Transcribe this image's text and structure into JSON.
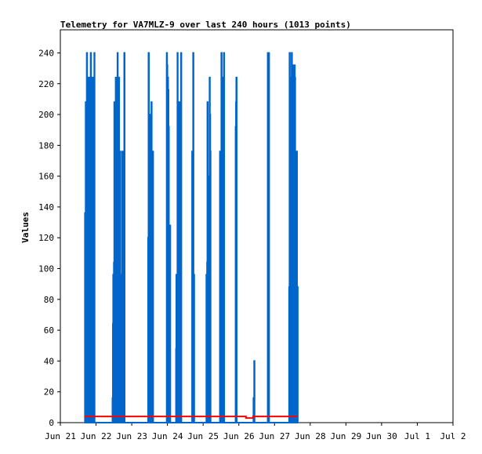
{
  "chart_data": {
    "type": "line",
    "title": "Telemetry for VA7MLZ-9 over last 240 hours (1013 points)",
    "xlabel": "",
    "ylabel": "Values",
    "ylim": [
      0,
      255
    ],
    "yticks": [
      0,
      20,
      40,
      60,
      80,
      100,
      120,
      140,
      160,
      180,
      200,
      220,
      240
    ],
    "xlim": [
      0,
      11
    ],
    "xticks": [
      {
        "v": 0,
        "label": "Jun 21"
      },
      {
        "v": 1,
        "label": "Jun 22"
      },
      {
        "v": 2,
        "label": "Jun 23"
      },
      {
        "v": 3,
        "label": "Jun 24"
      },
      {
        "v": 4,
        "label": "Jun 25"
      },
      {
        "v": 5,
        "label": "Jun 26"
      },
      {
        "v": 6,
        "label": "Jun 27"
      },
      {
        "v": 7,
        "label": "Jun 28"
      },
      {
        "v": 8,
        "label": "Jun 29"
      },
      {
        "v": 9,
        "label": "Jun 30"
      },
      {
        "v": 10,
        "label": "Jul 1"
      },
      {
        "v": 11,
        "label": "Jul 2"
      }
    ],
    "grid": false,
    "series": [
      {
        "color": "#0066cc",
        "points": [
          [
            0.68,
            0
          ],
          [
            0.69,
            136
          ],
          [
            0.7,
            32
          ],
          [
            0.71,
            208
          ],
          [
            0.72,
            0
          ],
          [
            0.73,
            192
          ],
          [
            0.74,
            240
          ],
          [
            0.75,
            0
          ],
          [
            0.76,
            88
          ],
          [
            0.77,
            176
          ],
          [
            0.78,
            224
          ],
          [
            0.79,
            0
          ],
          [
            0.8,
            208
          ],
          [
            0.81,
            224
          ],
          [
            0.82,
            0
          ],
          [
            0.83,
            136
          ],
          [
            0.84,
            0
          ],
          [
            0.85,
            240
          ],
          [
            0.86,
            0
          ],
          [
            0.87,
            176
          ],
          [
            0.88,
            224
          ],
          [
            0.89,
            0
          ],
          [
            0.9,
            176
          ],
          [
            0.91,
            224
          ],
          [
            0.92,
            0
          ],
          [
            0.93,
            112
          ],
          [
            0.94,
            0
          ],
          [
            0.95,
            240
          ],
          [
            0.96,
            0
          ],
          [
            1.45,
            0
          ],
          [
            1.46,
            16
          ],
          [
            1.47,
            64
          ],
          [
            1.48,
            96
          ],
          [
            1.49,
            0
          ],
          [
            1.5,
            104
          ],
          [
            1.51,
            208
          ],
          [
            1.52,
            0
          ],
          [
            1.53,
            104
          ],
          [
            1.54,
            176
          ],
          [
            1.55,
            224
          ],
          [
            1.56,
            0
          ],
          [
            1.57,
            192
          ],
          [
            1.58,
            224
          ],
          [
            1.59,
            0
          ],
          [
            1.6,
            240
          ],
          [
            1.61,
            0
          ],
          [
            1.62,
            64
          ],
          [
            1.63,
            112
          ],
          [
            1.64,
            224
          ],
          [
            1.65,
            0
          ],
          [
            1.66,
            80
          ],
          [
            1.67,
            176
          ],
          [
            1.68,
            0
          ],
          [
            1.69,
            96
          ],
          [
            1.7,
            48
          ],
          [
            1.71,
            0
          ],
          [
            1.72,
            88
          ],
          [
            1.73,
            176
          ],
          [
            1.74,
            0
          ],
          [
            1.75,
            176
          ],
          [
            1.76,
            0
          ],
          [
            1.77,
            96
          ],
          [
            1.78,
            0
          ],
          [
            1.79,
            240
          ],
          [
            1.8,
            0
          ],
          [
            2.45,
            0
          ],
          [
            2.46,
            120
          ],
          [
            2.47,
            240
          ],
          [
            2.48,
            0
          ],
          [
            2.49,
            104
          ],
          [
            2.5,
            200
          ],
          [
            2.51,
            192
          ],
          [
            2.52,
            0
          ],
          [
            2.53,
            80
          ],
          [
            2.54,
            0
          ],
          [
            2.55,
            208
          ],
          [
            2.56,
            0
          ],
          [
            2.57,
            96
          ],
          [
            2.58,
            0
          ],
          [
            2.59,
            176
          ],
          [
            2.6,
            0
          ],
          [
            2.97,
            0
          ],
          [
            2.98,
            240
          ],
          [
            2.99,
            232
          ],
          [
            3.0,
            0
          ],
          [
            3.01,
            224
          ],
          [
            3.02,
            216
          ],
          [
            3.03,
            192
          ],
          [
            3.04,
            0
          ],
          [
            3.05,
            96
          ],
          [
            3.06,
            0
          ],
          [
            3.07,
            128
          ],
          [
            3.08,
            0
          ],
          [
            3.23,
            0
          ],
          [
            3.24,
            48
          ],
          [
            3.25,
            96
          ],
          [
            3.26,
            64
          ],
          [
            3.27,
            0
          ],
          [
            3.28,
            240
          ],
          [
            3.29,
            40
          ],
          [
            3.3,
            0
          ],
          [
            3.31,
            80
          ],
          [
            3.32,
            208
          ],
          [
            3.33,
            0
          ],
          [
            3.34,
            208
          ],
          [
            3.35,
            104
          ],
          [
            3.36,
            208
          ],
          [
            3.37,
            0
          ],
          [
            3.38,
            240
          ],
          [
            3.39,
            0
          ],
          [
            3.68,
            0
          ],
          [
            3.69,
            176
          ],
          [
            3.7,
            160
          ],
          [
            3.71,
            0
          ],
          [
            3.72,
            240
          ],
          [
            3.73,
            0
          ],
          [
            3.74,
            96
          ],
          [
            3.75,
            0
          ],
          [
            4.08,
            0
          ],
          [
            4.09,
            96
          ],
          [
            4.1,
            0
          ],
          [
            4.11,
            104
          ],
          [
            4.12,
            208
          ],
          [
            4.13,
            0
          ],
          [
            4.14,
            64
          ],
          [
            4.15,
            160
          ],
          [
            4.16,
            0
          ],
          [
            4.17,
            104
          ],
          [
            4.18,
            224
          ],
          [
            4.19,
            200
          ],
          [
            4.2,
            176
          ],
          [
            4.21,
            0
          ],
          [
            4.46,
            0
          ],
          [
            4.47,
            176
          ],
          [
            4.48,
            112
          ],
          [
            4.49,
            0
          ],
          [
            4.5,
            144
          ],
          [
            4.51,
            240
          ],
          [
            4.52,
            0
          ],
          [
            4.53,
            112
          ],
          [
            4.54,
            224
          ],
          [
            4.55,
            0
          ],
          [
            4.56,
            128
          ],
          [
            4.57,
            0
          ],
          [
            4.58,
            240
          ],
          [
            4.59,
            0
          ],
          [
            4.9,
            0
          ],
          [
            4.91,
            192
          ],
          [
            4.92,
            208
          ],
          [
            4.93,
            224
          ],
          [
            4.94,
            0
          ],
          [
            5.4,
            0
          ],
          [
            5.41,
            16
          ],
          [
            5.42,
            0
          ],
          [
            5.43,
            40
          ],
          [
            5.44,
            0
          ],
          [
            5.8,
            0
          ],
          [
            5.81,
            240
          ],
          [
            5.82,
            232
          ],
          [
            5.83,
            0
          ],
          [
            5.84,
            240
          ],
          [
            5.85,
            0
          ],
          [
            6.4,
            0
          ],
          [
            6.41,
            88
          ],
          [
            6.42,
            240
          ],
          [
            6.43,
            0
          ],
          [
            6.44,
            112
          ],
          [
            6.45,
            224
          ],
          [
            6.46,
            0
          ],
          [
            6.47,
            136
          ],
          [
            6.48,
            240
          ],
          [
            6.49,
            224
          ],
          [
            6.5,
            0
          ],
          [
            6.51,
            232
          ],
          [
            6.52,
            0
          ],
          [
            6.53,
            88
          ],
          [
            6.54,
            32
          ],
          [
            6.55,
            0
          ],
          [
            6.56,
            232
          ],
          [
            6.57,
            224
          ],
          [
            6.58,
            0
          ],
          [
            6.59,
            24
          ],
          [
            6.6,
            48
          ],
          [
            6.61,
            0
          ],
          [
            6.62,
            176
          ],
          [
            6.63,
            0
          ],
          [
            6.64,
            88
          ],
          [
            6.65,
            0
          ]
        ]
      },
      {
        "color": "#ff0000",
        "points": [
          [
            0.68,
            4
          ],
          [
            2.0,
            4
          ],
          [
            3.0,
            4
          ],
          [
            4.0,
            4
          ],
          [
            5.0,
            4
          ],
          [
            5.2,
            3
          ],
          [
            5.4,
            4
          ],
          [
            6.0,
            4
          ],
          [
            6.64,
            4
          ]
        ]
      }
    ]
  }
}
